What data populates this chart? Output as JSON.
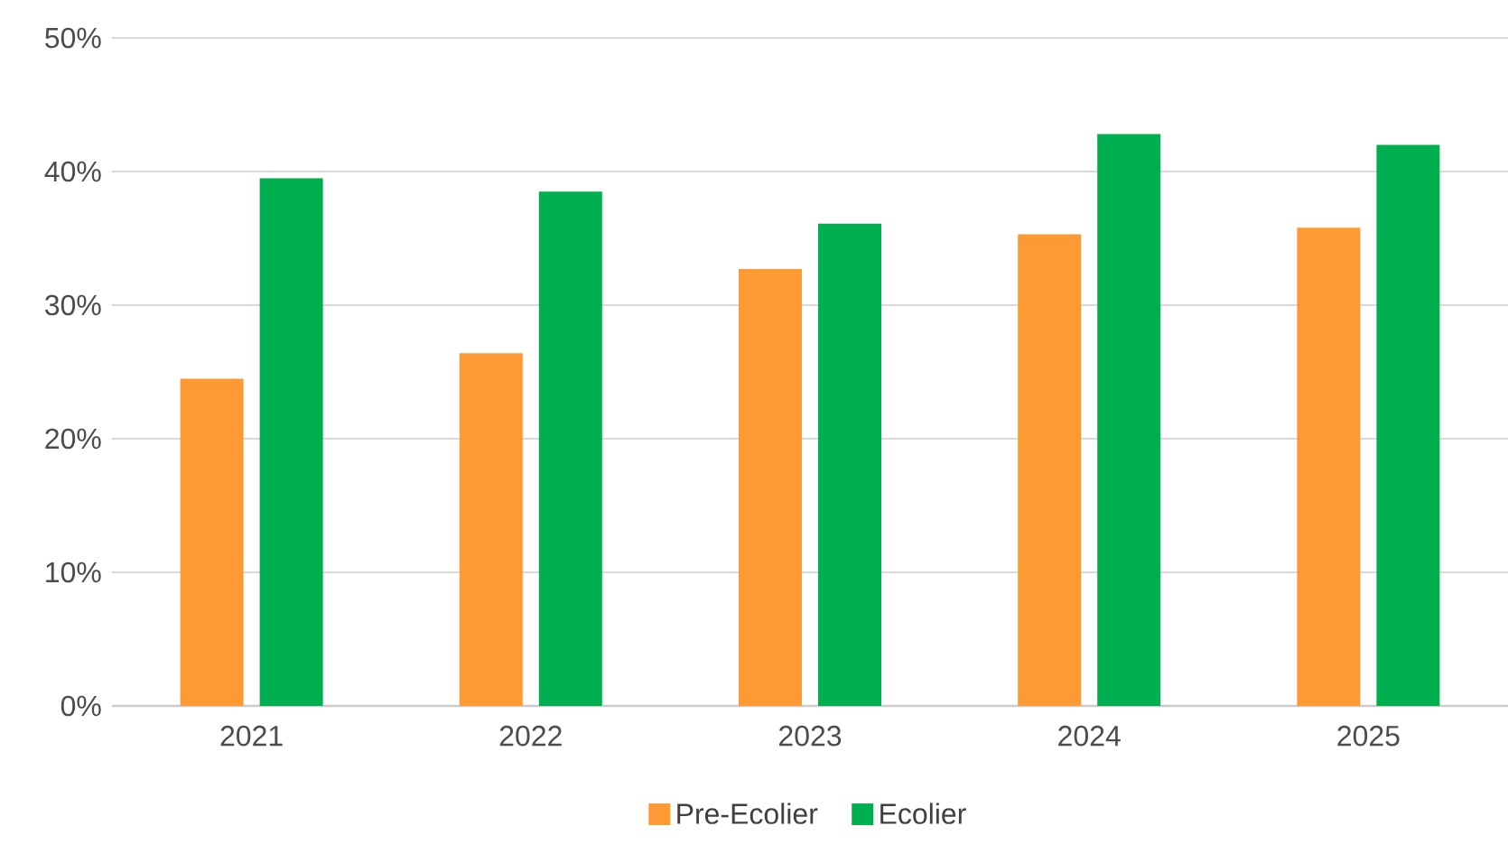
{
  "chart_data": {
    "type": "bar",
    "categories": [
      "2021",
      "2022",
      "2023",
      "2024",
      "2025"
    ],
    "series": [
      {
        "name": "Pre-Ecolier",
        "color": "#ff9933",
        "values": [
          24.5,
          26.4,
          32.7,
          35.3,
          35.8
        ]
      },
      {
        "name": "Ecolier",
        "color": "#00b050",
        "values": [
          39.5,
          38.5,
          36.1,
          42.8,
          42.0
        ]
      }
    ],
    "ylim": [
      0,
      50
    ],
    "yticks": [
      {
        "value": 0,
        "label": "0%"
      },
      {
        "value": 10,
        "label": "10%"
      },
      {
        "value": 20,
        "label": "20%"
      },
      {
        "value": 30,
        "label": "30%"
      },
      {
        "value": 40,
        "label": "40%"
      },
      {
        "value": 50,
        "label": "50%"
      }
    ],
    "grid": "y",
    "legend": "bottom"
  }
}
